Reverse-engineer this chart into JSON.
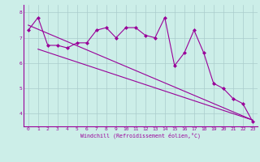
{
  "xlabel": "Windchill (Refroidissement éolien,°C)",
  "background_color": "#cceee8",
  "grid_color": "#aacccc",
  "line_color": "#990099",
  "xlim": [
    -0.5,
    23.5
  ],
  "ylim": [
    3.5,
    8.3
  ],
  "yticks": [
    4,
    5,
    6,
    7,
    8
  ],
  "xticks": [
    0,
    1,
    2,
    3,
    4,
    5,
    6,
    7,
    8,
    9,
    10,
    11,
    12,
    13,
    14,
    15,
    16,
    17,
    18,
    19,
    20,
    21,
    22,
    23
  ],
  "hours": [
    0,
    1,
    2,
    3,
    4,
    5,
    6,
    7,
    8,
    9,
    10,
    11,
    12,
    13,
    14,
    15,
    16,
    17,
    18,
    19,
    20,
    21,
    22,
    23
  ],
  "windchill": [
    7.3,
    7.8,
    6.7,
    6.7,
    6.6,
    6.8,
    6.8,
    7.3,
    7.4,
    7.0,
    7.4,
    7.4,
    7.1,
    7.0,
    7.8,
    5.9,
    6.4,
    7.3,
    6.4,
    5.2,
    5.0,
    4.6,
    4.4,
    3.7
  ],
  "trend1_x": [
    1,
    23
  ],
  "trend1_y": [
    6.55,
    3.75
  ],
  "trend2_x": [
    0,
    23
  ],
  "trend2_y": [
    7.5,
    3.75
  ]
}
